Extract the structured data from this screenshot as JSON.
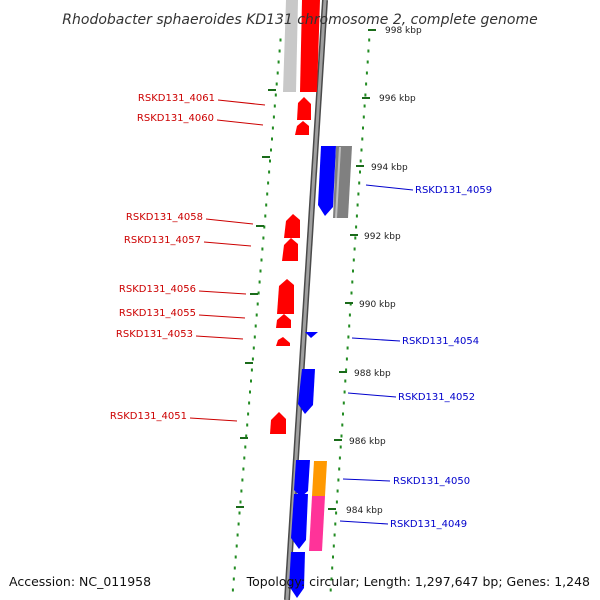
{
  "title": "Rhodobacter sphaeroides KD131 chromosome 2, complete genome",
  "footer": {
    "accession": "Accession: NC_011958",
    "summary": "Topology: circular; Length: 1,297,647 bp; Genes: 1,248"
  },
  "colors": {
    "strand_minus": "#ff0000",
    "strand_plus": "#0000ff",
    "grey_track": "#808080",
    "light_grey_track": "#c8c8c8",
    "orange_track": "#ff9900",
    "pink_track": "#ff3399",
    "backbone": "#808080",
    "dots": "#228b22"
  },
  "ticks": [
    {
      "kbp": 998,
      "label": "998 kbp"
    },
    {
      "kbp": 996,
      "label": "996 kbp"
    },
    {
      "kbp": 994,
      "label": "994 kbp"
    },
    {
      "kbp": 992,
      "label": "992 kbp"
    },
    {
      "kbp": 990,
      "label": "990 kbp"
    },
    {
      "kbp": 988,
      "label": "988 kbp"
    },
    {
      "kbp": 986,
      "label": "986 kbp"
    },
    {
      "kbp": 984,
      "label": "984 kbp"
    }
  ],
  "gene_labels": {
    "left": [
      "RSKD131_4061",
      "RSKD131_4060",
      "RSKD131_4058",
      "RSKD131_4057",
      "RSKD131_4056",
      "RSKD131_4055",
      "RSKD131_4053",
      "RSKD131_4051"
    ],
    "right": [
      "RSKD131_4059",
      "RSKD131_4054",
      "RSKD131_4052",
      "RSKD131_4050",
      "RSKD131_4049"
    ]
  }
}
